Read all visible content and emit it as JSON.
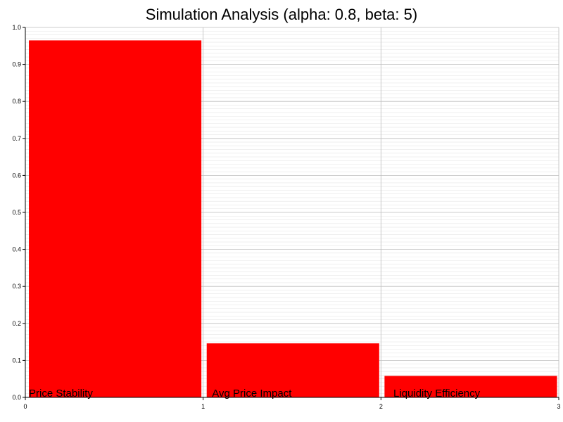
{
  "chart_data": {
    "type": "bar",
    "title": "Simulation Analysis (alpha: 0.8, beta: 5)",
    "xlabel": "",
    "ylabel": "",
    "categories": [
      "Price Stability",
      "Avg Price Impact",
      "Liquidity Efficiency"
    ],
    "values": [
      0.965,
      0.146,
      0.058
    ],
    "xlim": [
      0,
      3
    ],
    "ylim": [
      0,
      1.0
    ],
    "x_ticks": [
      "0",
      "1",
      "2",
      "3"
    ],
    "y_ticks": [
      "0.0",
      "0.1",
      "0.2",
      "0.3",
      "0.4",
      "0.5",
      "0.6",
      "0.7",
      "0.8",
      "0.9",
      "1.0"
    ],
    "grid": true,
    "minor_grid": true,
    "legend": "none",
    "bar_color": "#ff0000",
    "grid_color": "#bdbdbd",
    "minor_grid_color": "#e6e6e6"
  }
}
